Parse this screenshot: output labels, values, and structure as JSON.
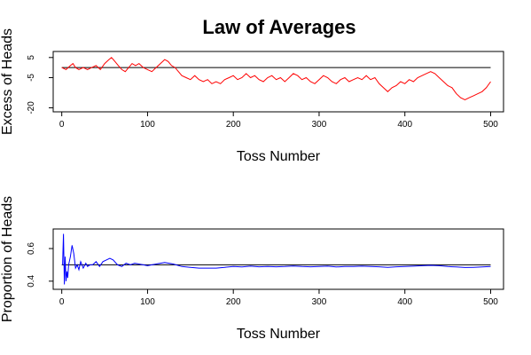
{
  "title": "Law of Averages",
  "colors": {
    "top_line": "#ff0000",
    "bottom_line": "#0000ff",
    "axis": "#000000",
    "reference": "#000000",
    "background": "#ffffff"
  },
  "chart_data": [
    {
      "type": "line",
      "title": "Law of Averages",
      "xlabel": "Toss Number",
      "ylabel": "Excess of Heads",
      "xlim": [
        -10,
        515
      ],
      "ylim": [
        -22,
        8
      ],
      "xticks": [
        0,
        100,
        200,
        300,
        400,
        500
      ],
      "xtick_labels": [
        "0",
        "100",
        "200",
        "300",
        "400",
        "500"
      ],
      "yticks": [
        5,
        -5,
        -20
      ],
      "ytick_labels": [
        "5",
        "-5",
        "-20"
      ],
      "reference_line_y": 0,
      "grid": false,
      "series": [
        {
          "color": "#ff0000",
          "points": [
            [
              0,
              0
            ],
            [
              5,
              -1
            ],
            [
              10,
              1
            ],
            [
              13,
              2
            ],
            [
              16,
              0
            ],
            [
              20,
              -1
            ],
            [
              25,
              0
            ],
            [
              30,
              -1
            ],
            [
              35,
              0
            ],
            [
              40,
              1
            ],
            [
              45,
              -1
            ],
            [
              50,
              2
            ],
            [
              55,
              4
            ],
            [
              58,
              5
            ],
            [
              62,
              3
            ],
            [
              66,
              1
            ],
            [
              70,
              -1
            ],
            [
              74,
              -2
            ],
            [
              78,
              0
            ],
            [
              82,
              2
            ],
            [
              86,
              1
            ],
            [
              90,
              2
            ],
            [
              95,
              0
            ],
            [
              100,
              -1
            ],
            [
              105,
              -2
            ],
            [
              110,
              0
            ],
            [
              115,
              2
            ],
            [
              120,
              4
            ],
            [
              124,
              3
            ],
            [
              128,
              1
            ],
            [
              132,
              0
            ],
            [
              136,
              -2
            ],
            [
              140,
              -4
            ],
            [
              145,
              -5
            ],
            [
              150,
              -6
            ],
            [
              155,
              -4
            ],
            [
              160,
              -6
            ],
            [
              165,
              -7
            ],
            [
              170,
              -6
            ],
            [
              175,
              -8
            ],
            [
              180,
              -7
            ],
            [
              185,
              -8
            ],
            [
              190,
              -6
            ],
            [
              195,
              -5
            ],
            [
              200,
              -4
            ],
            [
              205,
              -6
            ],
            [
              210,
              -5
            ],
            [
              215,
              -3
            ],
            [
              220,
              -5
            ],
            [
              225,
              -4
            ],
            [
              230,
              -6
            ],
            [
              235,
              -7
            ],
            [
              240,
              -5
            ],
            [
              245,
              -4
            ],
            [
              250,
              -6
            ],
            [
              255,
              -5
            ],
            [
              260,
              -7
            ],
            [
              265,
              -5
            ],
            [
              270,
              -3
            ],
            [
              275,
              -4
            ],
            [
              280,
              -6
            ],
            [
              285,
              -5
            ],
            [
              290,
              -7
            ],
            [
              295,
              -8
            ],
            [
              300,
              -6
            ],
            [
              305,
              -4
            ],
            [
              310,
              -5
            ],
            [
              315,
              -7
            ],
            [
              320,
              -8
            ],
            [
              325,
              -6
            ],
            [
              330,
              -5
            ],
            [
              335,
              -7
            ],
            [
              340,
              -6
            ],
            [
              345,
              -5
            ],
            [
              350,
              -6
            ],
            [
              355,
              -4
            ],
            [
              360,
              -6
            ],
            [
              365,
              -5
            ],
            [
              370,
              -8
            ],
            [
              375,
              -10
            ],
            [
              380,
              -12
            ],
            [
              385,
              -10
            ],
            [
              390,
              -9
            ],
            [
              395,
              -7
            ],
            [
              400,
              -8
            ],
            [
              405,
              -6
            ],
            [
              410,
              -7
            ],
            [
              415,
              -5
            ],
            [
              420,
              -4
            ],
            [
              425,
              -3
            ],
            [
              430,
              -2
            ],
            [
              435,
              -3
            ],
            [
              440,
              -5
            ],
            [
              445,
              -7
            ],
            [
              450,
              -9
            ],
            [
              455,
              -10
            ],
            [
              460,
              -13
            ],
            [
              465,
              -15
            ],
            [
              470,
              -16
            ],
            [
              475,
              -15
            ],
            [
              480,
              -14
            ],
            [
              485,
              -13
            ],
            [
              490,
              -12
            ],
            [
              495,
              -10
            ],
            [
              500,
              -7
            ]
          ]
        }
      ]
    },
    {
      "type": "line",
      "xlabel": "Toss Number",
      "ylabel": "Proportion of Heads",
      "xlim": [
        -10,
        515
      ],
      "ylim": [
        0.35,
        0.72
      ],
      "xticks": [
        0,
        100,
        200,
        300,
        400,
        500
      ],
      "xtick_labels": [
        "0",
        "100",
        "200",
        "300",
        "400",
        "500"
      ],
      "yticks": [
        0.4,
        0.6
      ],
      "ytick_labels": [
        "0.4",
        "0.6"
      ],
      "reference_line_y": 0.5,
      "grid": false,
      "series": [
        {
          "color": "#0000ff",
          "points": [
            [
              1,
              0.5
            ],
            [
              2,
              0.69
            ],
            [
              3,
              0.38
            ],
            [
              4,
              0.55
            ],
            [
              5,
              0.4
            ],
            [
              6,
              0.46
            ],
            [
              7,
              0.42
            ],
            [
              8,
              0.5
            ],
            [
              10,
              0.55
            ],
            [
              12,
              0.62
            ],
            [
              14,
              0.57
            ],
            [
              16,
              0.48
            ],
            [
              18,
              0.5
            ],
            [
              20,
              0.47
            ],
            [
              22,
              0.52
            ],
            [
              25,
              0.48
            ],
            [
              28,
              0.51
            ],
            [
              30,
              0.49
            ],
            [
              33,
              0.5
            ],
            [
              36,
              0.5
            ],
            [
              40,
              0.52
            ],
            [
              44,
              0.49
            ],
            [
              48,
              0.52
            ],
            [
              52,
              0.53
            ],
            [
              56,
              0.54
            ],
            [
              60,
              0.53
            ],
            [
              65,
              0.5
            ],
            [
              70,
              0.49
            ],
            [
              75,
              0.51
            ],
            [
              80,
              0.5
            ],
            [
              85,
              0.51
            ],
            [
              90,
              0.505
            ],
            [
              95,
              0.5
            ],
            [
              100,
              0.495
            ],
            [
              105,
              0.5
            ],
            [
              110,
              0.505
            ],
            [
              115,
              0.51
            ],
            [
              120,
              0.515
            ],
            [
              125,
              0.51
            ],
            [
              130,
              0.505
            ],
            [
              140,
              0.49
            ],
            [
              150,
              0.485
            ],
            [
              160,
              0.48
            ],
            [
              170,
              0.48
            ],
            [
              180,
              0.48
            ],
            [
              190,
              0.485
            ],
            [
              200,
              0.49
            ],
            [
              210,
              0.487
            ],
            [
              220,
              0.492
            ],
            [
              230,
              0.488
            ],
            [
              240,
              0.49
            ],
            [
              250,
              0.488
            ],
            [
              260,
              0.49
            ],
            [
              270,
              0.493
            ],
            [
              280,
              0.49
            ],
            [
              290,
              0.488
            ],
            [
              300,
              0.49
            ],
            [
              310,
              0.492
            ],
            [
              320,
              0.487
            ],
            [
              330,
              0.49
            ],
            [
              340,
              0.49
            ],
            [
              350,
              0.492
            ],
            [
              360,
              0.49
            ],
            [
              370,
              0.488
            ],
            [
              380,
              0.485
            ],
            [
              390,
              0.488
            ],
            [
              400,
              0.49
            ],
            [
              410,
              0.492
            ],
            [
              420,
              0.495
            ],
            [
              430,
              0.497
            ],
            [
              440,
              0.495
            ],
            [
              450,
              0.49
            ],
            [
              460,
              0.487
            ],
            [
              470,
              0.484
            ],
            [
              480,
              0.485
            ],
            [
              490,
              0.487
            ],
            [
              500,
              0.49
            ]
          ]
        }
      ]
    }
  ]
}
